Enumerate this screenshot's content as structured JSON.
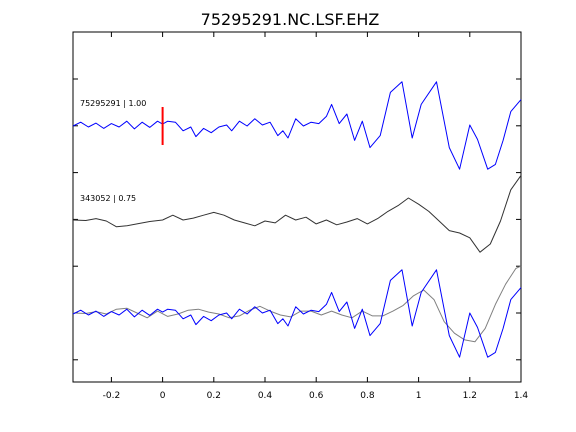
{
  "chart_data": {
    "type": "line",
    "title": "75295291.NC.LSF.EHZ",
    "xlabel": "",
    "ylabel": "",
    "xlim": [
      -0.35,
      1.4
    ],
    "x_ticks": [
      -0.2,
      0,
      0.2,
      0.4,
      0.6,
      0.8,
      1,
      1.2,
      1.4
    ],
    "x_tick_labels": [
      "-0.2",
      "0",
      "0.2",
      "0.4",
      "0.6",
      "0.8",
      "1",
      "1.2",
      "1.4"
    ],
    "y_ticks_count": 7,
    "grid": false,
    "pick_marker": {
      "x": 0,
      "color": "#ff0000"
    },
    "colors": {
      "target": "#0000ff",
      "reference": "#333333",
      "overlay_reference": "#808080",
      "axes": "#000000",
      "pick": "#ff0000"
    },
    "panels": [
      {
        "label": "75295291 | 1.00",
        "traces": [
          {
            "role": "target",
            "color": "#0000ff",
            "points": [
              [
                -0.35,
                0
              ],
              [
                -0.32,
                0.08
              ],
              [
                -0.29,
                -0.02
              ],
              [
                -0.26,
                0.06
              ],
              [
                -0.23,
                -0.05
              ],
              [
                -0.2,
                0.05
              ],
              [
                -0.17,
                -0.02
              ],
              [
                -0.14,
                0.1
              ],
              [
                -0.11,
                -0.06
              ],
              [
                -0.08,
                0.08
              ],
              [
                -0.05,
                -0.03
              ],
              [
                -0.02,
                0.1
              ],
              [
                0,
                0.04
              ],
              [
                0.02,
                0.1
              ],
              [
                0.05,
                0.08
              ],
              [
                0.08,
                -0.1
              ],
              [
                0.11,
                -0.02
              ],
              [
                0.13,
                -0.22
              ],
              [
                0.16,
                -0.05
              ],
              [
                0.19,
                -0.14
              ],
              [
                0.22,
                -0.02
              ],
              [
                0.25,
                0.02
              ],
              [
                0.27,
                -0.1
              ],
              [
                0.3,
                0.1
              ],
              [
                0.33,
                0
              ],
              [
                0.36,
                0.15
              ],
              [
                0.39,
                0.02
              ],
              [
                0.42,
                0.08
              ],
              [
                0.45,
                -0.2
              ],
              [
                0.47,
                -0.1
              ],
              [
                0.49,
                -0.25
              ],
              [
                0.52,
                0.15
              ],
              [
                0.55,
                0
              ],
              [
                0.58,
                0.08
              ],
              [
                0.61,
                0.05
              ],
              [
                0.64,
                0.2
              ],
              [
                0.66,
                0.45
              ],
              [
                0.69,
                0.05
              ],
              [
                0.72,
                0.25
              ],
              [
                0.75,
                -0.3
              ],
              [
                0.78,
                0.1
              ],
              [
                0.81,
                -0.45
              ],
              [
                0.85,
                -0.2
              ],
              [
                0.89,
                0.7
              ],
              [
                0.935,
                0.92
              ],
              [
                0.975,
                -0.25
              ],
              [
                1.01,
                0.45
              ],
              [
                1.07,
                0.92
              ],
              [
                1.12,
                -0.45
              ],
              [
                1.16,
                -0.9
              ],
              [
                1.2,
                0.02
              ],
              [
                1.23,
                -0.28
              ],
              [
                1.27,
                -0.9
              ],
              [
                1.3,
                -0.8
              ],
              [
                1.33,
                -0.3
              ],
              [
                1.36,
                0.3
              ],
              [
                1.4,
                0.55
              ]
            ]
          }
        ]
      },
      {
        "label": "343052 | 0.75",
        "traces": [
          {
            "role": "reference",
            "color": "#333333",
            "points": [
              [
                -0.35,
                0.02
              ],
              [
                -0.3,
                0.01
              ],
              [
                -0.26,
                0.05
              ],
              [
                -0.22,
                0
              ],
              [
                -0.18,
                -0.12
              ],
              [
                -0.14,
                -0.1
              ],
              [
                -0.1,
                -0.06
              ],
              [
                -0.05,
                -0.01
              ],
              [
                0,
                0.02
              ],
              [
                0.04,
                0.12
              ],
              [
                0.08,
                0.02
              ],
              [
                0.12,
                0.06
              ],
              [
                0.16,
                0.12
              ],
              [
                0.2,
                0.18
              ],
              [
                0.24,
                0.12
              ],
              [
                0.28,
                0.02
              ],
              [
                0.32,
                -0.04
              ],
              [
                0.36,
                -0.1
              ],
              [
                0.4,
                0
              ],
              [
                0.44,
                -0.04
              ],
              [
                0.48,
                0.12
              ],
              [
                0.52,
                0.02
              ],
              [
                0.56,
                0.08
              ],
              [
                0.6,
                -0.06
              ],
              [
                0.64,
                0.02
              ],
              [
                0.68,
                -0.08
              ],
              [
                0.72,
                -0.02
              ],
              [
                0.76,
                0.05
              ],
              [
                0.8,
                -0.06
              ],
              [
                0.84,
                0.05
              ],
              [
                0.88,
                0.2
              ],
              [
                0.92,
                0.32
              ],
              [
                0.96,
                0.48
              ],
              [
                1.0,
                0.35
              ],
              [
                1.04,
                0.2
              ],
              [
                1.08,
                0
              ],
              [
                1.12,
                -0.2
              ],
              [
                1.16,
                -0.25
              ],
              [
                1.2,
                -0.35
              ],
              [
                1.24,
                -0.65
              ],
              [
                1.28,
                -0.48
              ],
              [
                1.32,
                0.0
              ],
              [
                1.36,
                0.65
              ],
              [
                1.4,
                0.95
              ]
            ]
          }
        ]
      },
      {
        "label": "",
        "traces": [
          {
            "role": "overlay_reference",
            "color": "#808080",
            "points": [
              [
                -0.35,
                0.02
              ],
              [
                -0.3,
                0.01
              ],
              [
                -0.26,
                0.05
              ],
              [
                -0.22,
                0
              ],
              [
                -0.18,
                0.1
              ],
              [
                -0.14,
                0.12
              ],
              [
                -0.1,
                0.02
              ],
              [
                -0.06,
                -0.08
              ],
              [
                -0.02,
                0.06
              ],
              [
                0.02,
                -0.05
              ],
              [
                0.06,
                0
              ],
              [
                0.1,
                0.08
              ],
              [
                0.14,
                0.1
              ],
              [
                0.18,
                0.04
              ],
              [
                0.22,
                0
              ],
              [
                0.26,
                -0.08
              ],
              [
                0.3,
                -0.04
              ],
              [
                0.34,
                0.08
              ],
              [
                0.38,
                0.16
              ],
              [
                0.42,
                0.06
              ],
              [
                0.46,
                -0.02
              ],
              [
                0.5,
                -0.06
              ],
              [
                0.54,
                0.06
              ],
              [
                0.58,
                0.06
              ],
              [
                0.62,
                -0.02
              ],
              [
                0.66,
                0.06
              ],
              [
                0.7,
                -0.02
              ],
              [
                0.74,
                -0.08
              ],
              [
                0.78,
                0.06
              ],
              [
                0.82,
                -0.04
              ],
              [
                0.86,
                -0.04
              ],
              [
                0.9,
                0.06
              ],
              [
                0.94,
                0.18
              ],
              [
                0.98,
                0.38
              ],
              [
                1.02,
                0.5
              ],
              [
                1.06,
                0.3
              ],
              [
                1.1,
                -0.16
              ],
              [
                1.14,
                -0.4
              ],
              [
                1.18,
                -0.54
              ],
              [
                1.22,
                -0.58
              ],
              [
                1.26,
                -0.3
              ],
              [
                1.3,
                0.2
              ],
              [
                1.34,
                0.62
              ],
              [
                1.38,
                0.95
              ],
              [
                1.4,
                1.0
              ]
            ]
          },
          {
            "role": "target",
            "color": "#0000ff",
            "points": [
              [
                -0.35,
                0
              ],
              [
                -0.32,
                0.08
              ],
              [
                -0.29,
                -0.02
              ],
              [
                -0.26,
                0.06
              ],
              [
                -0.23,
                -0.05
              ],
              [
                -0.2,
                0.05
              ],
              [
                -0.17,
                -0.02
              ],
              [
                -0.14,
                0.1
              ],
              [
                -0.11,
                -0.06
              ],
              [
                -0.08,
                0.08
              ],
              [
                -0.05,
                -0.03
              ],
              [
                -0.02,
                0.1
              ],
              [
                0,
                0.04
              ],
              [
                0.02,
                0.1
              ],
              [
                0.05,
                0.08
              ],
              [
                0.08,
                -0.1
              ],
              [
                0.11,
                -0.02
              ],
              [
                0.13,
                -0.22
              ],
              [
                0.16,
                -0.05
              ],
              [
                0.19,
                -0.14
              ],
              [
                0.22,
                -0.02
              ],
              [
                0.25,
                0.02
              ],
              [
                0.27,
                -0.1
              ],
              [
                0.3,
                0.1
              ],
              [
                0.33,
                0
              ],
              [
                0.36,
                0.15
              ],
              [
                0.39,
                0.02
              ],
              [
                0.42,
                0.08
              ],
              [
                0.45,
                -0.2
              ],
              [
                0.47,
                -0.1
              ],
              [
                0.49,
                -0.25
              ],
              [
                0.52,
                0.15
              ],
              [
                0.55,
                0
              ],
              [
                0.58,
                0.08
              ],
              [
                0.61,
                0.05
              ],
              [
                0.64,
                0.2
              ],
              [
                0.66,
                0.45
              ],
              [
                0.69,
                0.05
              ],
              [
                0.72,
                0.25
              ],
              [
                0.75,
                -0.3
              ],
              [
                0.78,
                0.1
              ],
              [
                0.81,
                -0.45
              ],
              [
                0.85,
                -0.2
              ],
              [
                0.89,
                0.7
              ],
              [
                0.935,
                0.92
              ],
              [
                0.975,
                -0.25
              ],
              [
                1.01,
                0.45
              ],
              [
                1.07,
                0.92
              ],
              [
                1.12,
                -0.45
              ],
              [
                1.16,
                -0.9
              ],
              [
                1.2,
                0.02
              ],
              [
                1.23,
                -0.28
              ],
              [
                1.27,
                -0.9
              ],
              [
                1.3,
                -0.8
              ],
              [
                1.33,
                -0.3
              ],
              [
                1.36,
                0.3
              ],
              [
                1.4,
                0.55
              ]
            ]
          }
        ]
      }
    ]
  }
}
